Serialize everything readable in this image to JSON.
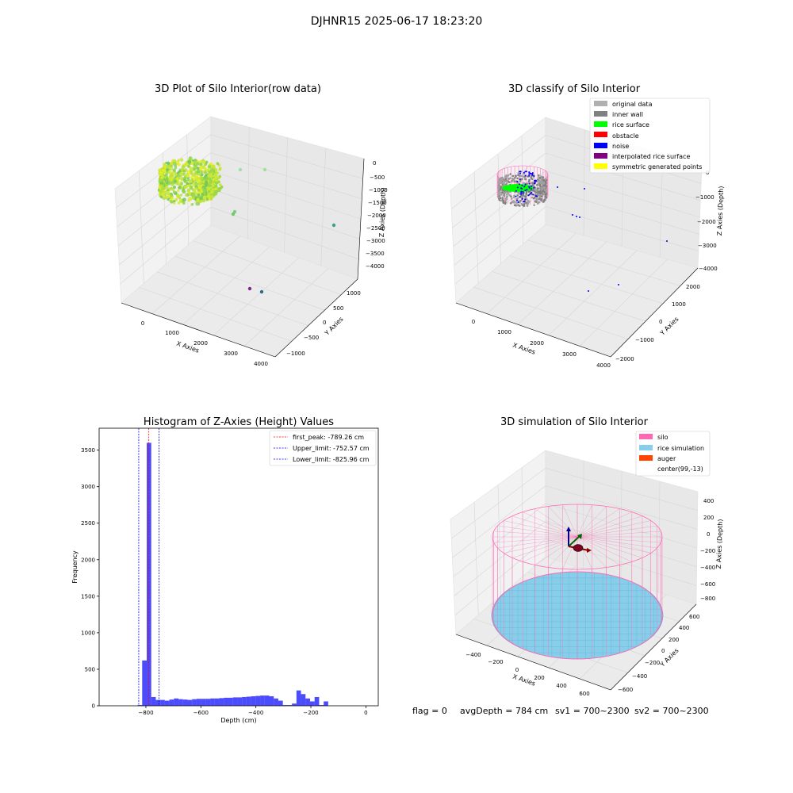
{
  "suptitle": "DJHNR15 2025-06-17 18:23:20",
  "colors": {
    "original_data": "#b0b0b0",
    "inner_wall": "#808080",
    "rice_surface": "#00ff00",
    "obstacle": "#ff0000",
    "noise": "#0000ff",
    "interpolated_rice_surface": "#800080",
    "symmetric_generated_points": "#ffff00",
    "silo": "#ff69b4",
    "rice_simulation": "#87ceeb",
    "auger": "#ff4500",
    "histogram": "#0000ff",
    "first_peak_line": "#ff0000",
    "limit_line": "#0000ff"
  },
  "footer": {
    "flag": "flag = 0",
    "avg_depth": "avgDepth = 784 cm",
    "sv1": "sv1 = 700~2300",
    "sv2": "sv2 = 700~2300"
  },
  "chart_data": [
    {
      "type": "scatter",
      "panel": "3d-raw",
      "title": "3D Plot of Silo Interior(row data)",
      "xlabel": "X Axies",
      "ylabel": "Y Axies",
      "zlabel": "Z Axies (Depth)",
      "x_ticks": [
        "0",
        "1000",
        "2000",
        "3000",
        "4000"
      ],
      "y_ticks": [
        "−1000",
        "−500",
        "0",
        "500",
        "1000"
      ],
      "z_ticks": [
        "0",
        "−500",
        "−1000",
        "−1500",
        "−2000",
        "−2500",
        "−3000",
        "−3500",
        "−4000"
      ],
      "xlim": [
        -500,
        4200
      ],
      "ylim": [
        -1200,
        1200
      ],
      "zlim": [
        -4200,
        200
      ],
      "cluster": {
        "x_range": [
          -300,
          500
        ],
        "y_range": [
          -500,
          500
        ],
        "z_range": [
          -1100,
          -200
        ],
        "colormap": "viridis-to-yellow"
      },
      "outliers": [
        {
          "x": 300,
          "y": -200,
          "z": -300,
          "color": "#a0e0a0"
        },
        {
          "x": 900,
          "y": 300,
          "z": -200,
          "color": "#a0e0a0"
        },
        {
          "x": 800,
          "y": 800,
          "z": -1500,
          "color": "#7ad07a"
        },
        {
          "x": 850,
          "y": 850,
          "z": -1650,
          "color": "#6ec86e"
        },
        {
          "x": 1200,
          "y": -1200,
          "z": -3700,
          "color": "#7a2a8a"
        },
        {
          "x": 1500,
          "y": -1100,
          "z": -3900,
          "color": "#2a6a8a"
        },
        {
          "x": 3800,
          "y": -300,
          "z": -2300,
          "color": "#3aa08a"
        }
      ]
    },
    {
      "type": "scatter",
      "panel": "3d-classify",
      "title": "3D classify of Silo Interior",
      "xlabel": "X Axies",
      "ylabel": "Y Axies",
      "zlabel": "Z Axies (Depth)",
      "x_ticks": [
        "0",
        "1000",
        "2000",
        "3000",
        "4000"
      ],
      "y_ticks": [
        "−2000",
        "−1000",
        "0",
        "1000",
        "2000"
      ],
      "z_ticks": [
        "0",
        "−1000",
        "−2000",
        "−3000",
        "−4000"
      ],
      "legend": [
        "original data",
        "inner wall",
        "rice surface",
        "obstacle",
        "noise",
        "interpolated rice surface",
        "symmetric generated points"
      ],
      "legend_position": "upper-right",
      "noise_points": [
        {
          "x": 900,
          "y": 300,
          "z": -300
        },
        {
          "x": 1500,
          "y": 700,
          "z": -300
        },
        {
          "x": 1100,
          "y": 600,
          "z": -1800
        },
        {
          "x": 1200,
          "y": 700,
          "z": -1850
        },
        {
          "x": 3900,
          "y": 1000,
          "z": -2700
        },
        {
          "x": 2300,
          "y": -1800,
          "z": -3900
        }
      ]
    },
    {
      "type": "bar",
      "panel": "histogram",
      "title": "Histogram of Z-Axies (Height) Values",
      "xlabel": "Depth (cm)",
      "ylabel": "Frequency",
      "xlim": [
        -970,
        45
      ],
      "ylim": [
        0,
        3800
      ],
      "x_ticks": [
        -800,
        -600,
        -400,
        -200,
        0
      ],
      "x_tick_labels": [
        "−800",
        "−600",
        "−400",
        "−200",
        "0"
      ],
      "y_ticks": [
        0,
        500,
        1000,
        1500,
        2000,
        2500,
        3000,
        3500
      ],
      "y_tick_labels": [
        "0",
        "500",
        "1000",
        "1500",
        "2000",
        "2500",
        "3000",
        "3500"
      ],
      "bin_start": -830,
      "bin_width": 16.5,
      "values": [
        10,
        620,
        3600,
        120,
        80,
        80,
        70,
        85,
        100,
        90,
        85,
        80,
        90,
        95,
        95,
        95,
        100,
        100,
        105,
        110,
        110,
        115,
        115,
        120,
        125,
        130,
        135,
        140,
        140,
        130,
        100,
        70,
        10,
        10,
        30,
        210,
        160,
        100,
        60,
        120,
        10,
        60
      ],
      "lines": [
        {
          "label": "first_peak: -789.26 cm",
          "x": -789.26,
          "color": "#ff0000"
        },
        {
          "label": "Upper_limit: -752.57 cm",
          "x": -752.57,
          "color": "#0000ff"
        },
        {
          "label": "Lower_limit: -825.96 cm",
          "x": -825.96,
          "color": "#0000ff"
        }
      ],
      "legend_position": "upper-right"
    },
    {
      "type": "surface",
      "panel": "3d-simulation",
      "title": "3D simulation of Silo Interior",
      "xlabel": "X Axies",
      "ylabel": "Y Axies",
      "zlabel": "Z Axies (Depth)",
      "x_ticks": [
        "−400",
        "−200",
        "0",
        "200",
        "400",
        "600"
      ],
      "y_ticks": [
        "−600",
        "−400",
        "−200",
        "0",
        "200",
        "400",
        "600"
      ],
      "z_ticks": [
        "400",
        "200",
        "0",
        "−200",
        "−400",
        "−600",
        "−800"
      ],
      "legend": [
        "silo",
        "rice simulation",
        "auger",
        "center(99,-13)"
      ],
      "legend_position": "upper-right"
    }
  ]
}
